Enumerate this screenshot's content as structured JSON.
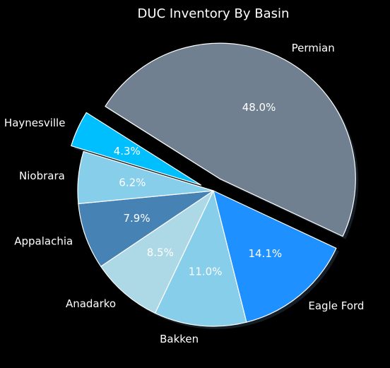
{
  "chart_data": {
    "type": "pie",
    "title": "DUC Inventory By Basin",
    "slices": [
      {
        "label": "Permian",
        "value": 48.0,
        "pct_label": "48.0%",
        "color": "#708090",
        "exploded": true
      },
      {
        "label": "Eagle Ford",
        "value": 14.1,
        "pct_label": "14.1%",
        "color": "#1e90ff",
        "exploded": false
      },
      {
        "label": "Bakken",
        "value": 11.0,
        "pct_label": "11.0%",
        "color": "#87ceeb",
        "exploded": false
      },
      {
        "label": "Anadarko",
        "value": 8.5,
        "pct_label": "8.5%",
        "color": "#add8e6",
        "exploded": false
      },
      {
        "label": "Appalachia",
        "value": 7.9,
        "pct_label": "7.9%",
        "color": "#4682b4",
        "exploded": false
      },
      {
        "label": "Niobrara",
        "value": 6.2,
        "pct_label": "6.2%",
        "color": "#87ceeb",
        "exploded": false
      },
      {
        "label": "Haynesville",
        "value": 4.3,
        "pct_label": "4.3%",
        "color": "#00bfff",
        "exploded": true
      }
    ],
    "shadow": true,
    "background": "#000000",
    "edge_color": "#ffffff"
  }
}
